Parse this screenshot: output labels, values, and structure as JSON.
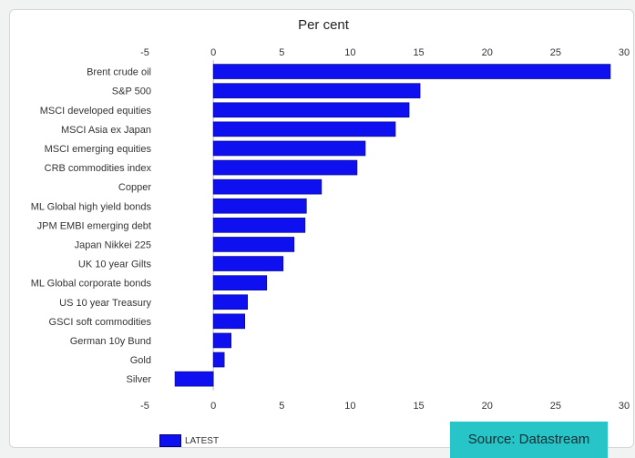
{
  "chart_data": {
    "type": "bar",
    "orientation": "horizontal",
    "title": "Per cent",
    "xlim": [
      -5,
      30
    ],
    "xticks": [
      -5,
      0,
      5,
      10,
      15,
      20,
      25,
      30
    ],
    "categories": [
      "Brent crude oil",
      "S&P 500",
      "MSCI developed equities",
      "MSCI Asia ex Japan",
      "MSCI emerging equities",
      "CRB commodities index",
      "Copper",
      "ML Global high yield bonds",
      "JPM EMBI emerging debt",
      "Japan Nikkei 225",
      "UK 10 year Gilts",
      "ML Global corporate bonds",
      "US 10 year Treasury",
      "GSCI soft commodities",
      "German 10y Bund",
      "Gold",
      "Silver"
    ],
    "series": [
      {
        "name": "LATEST",
        "color": "#0f10f0",
        "values": [
          29.0,
          15.1,
          14.3,
          13.3,
          11.1,
          10.5,
          7.9,
          6.8,
          6.7,
          5.9,
          5.1,
          3.9,
          2.5,
          2.3,
          1.3,
          0.8,
          -2.8
        ]
      }
    ],
    "legend": "bottom-left"
  },
  "source_label": "Source: Datastream"
}
